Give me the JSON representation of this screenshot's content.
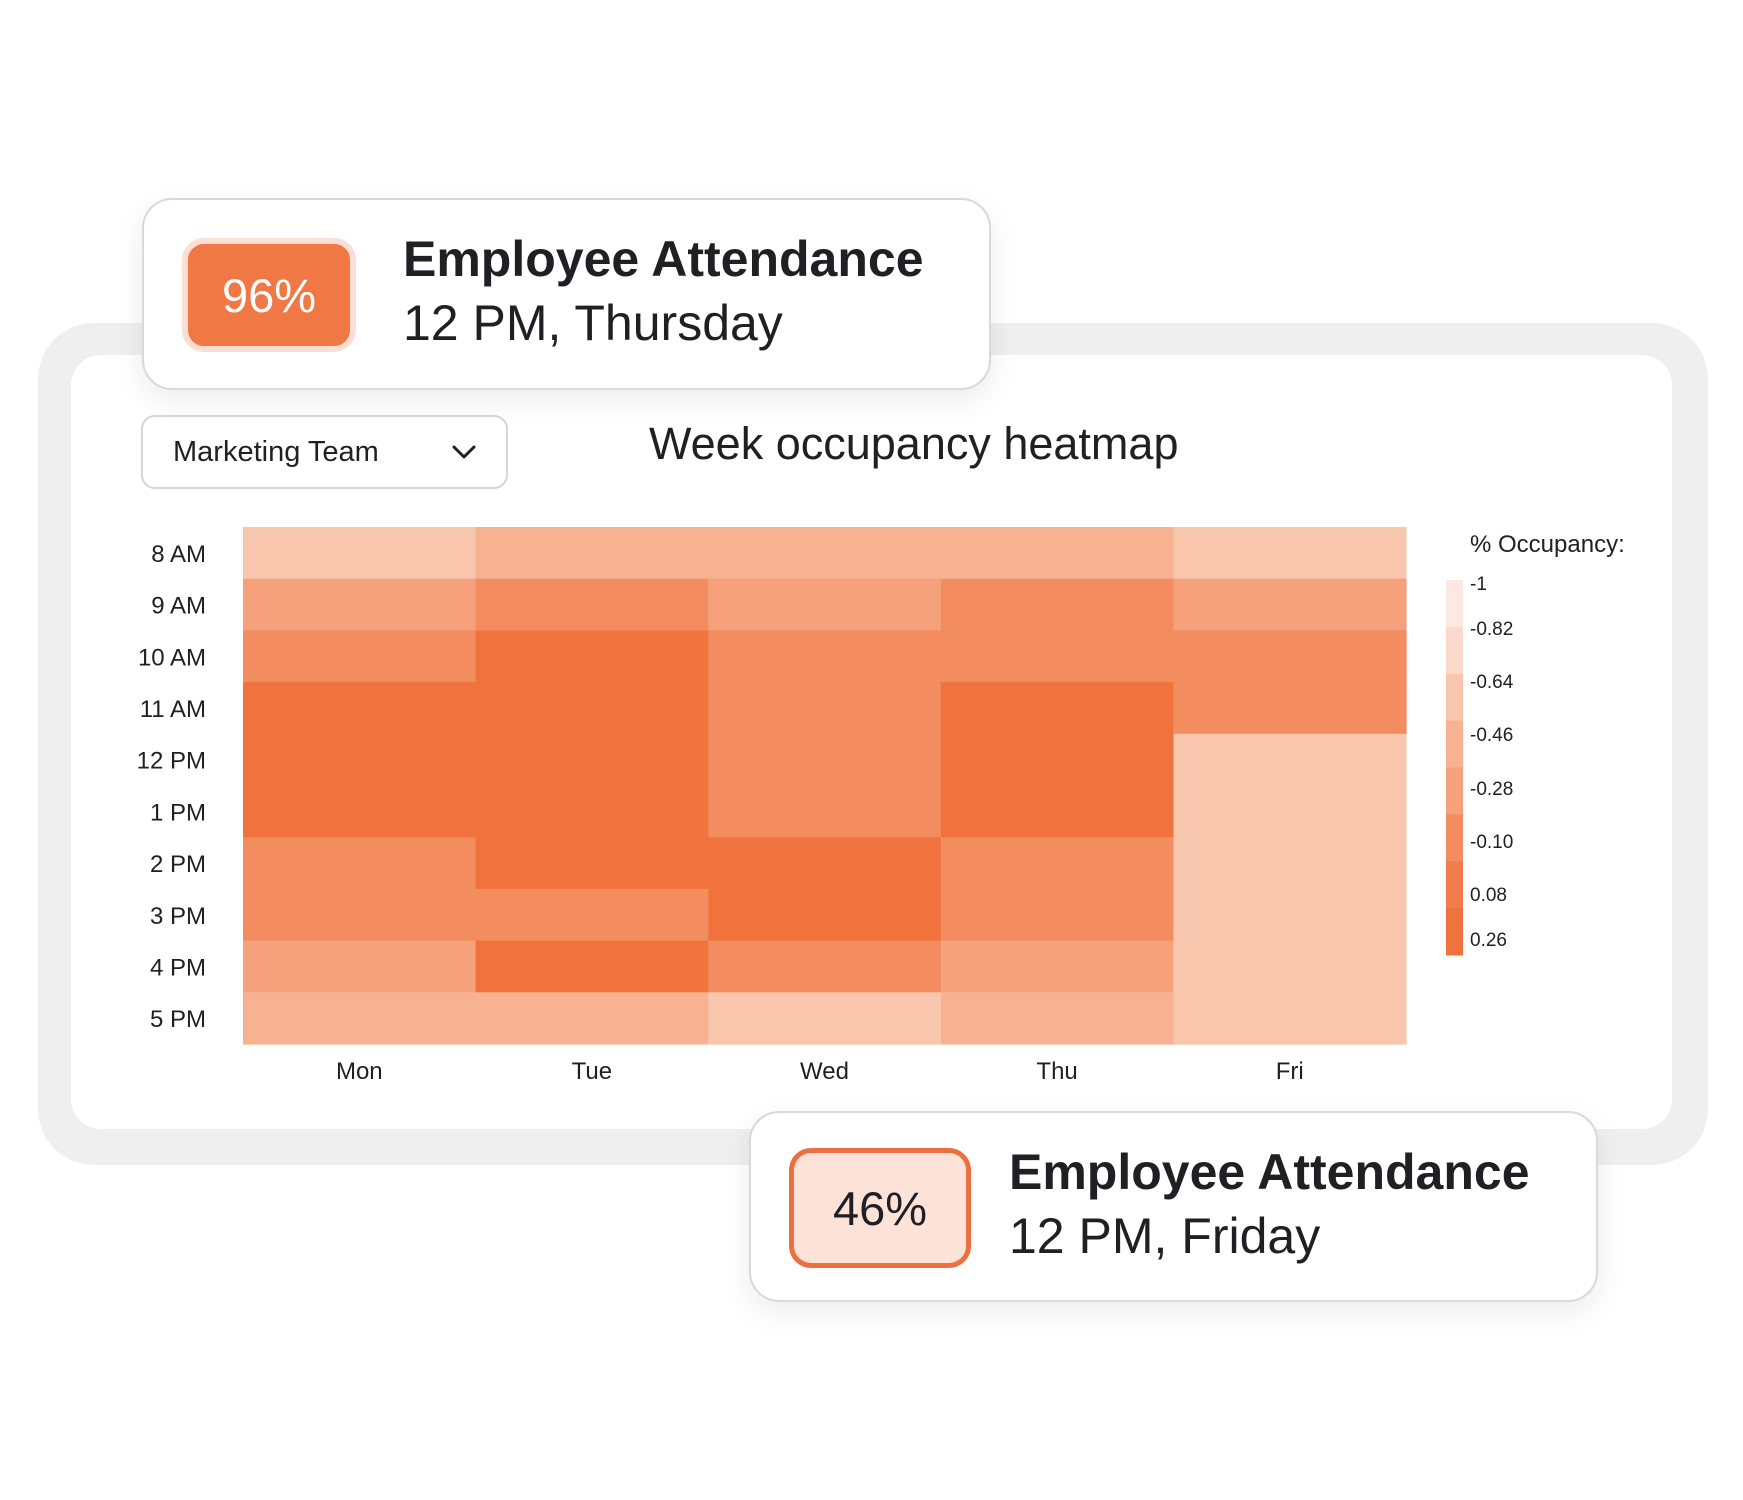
{
  "team_selector": {
    "value": "Marketing Team",
    "icon": "chevron-down-icon"
  },
  "chart_data": {
    "type": "heatmap",
    "title": "Week occupancy heatmap",
    "x_categories": [
      "Mon",
      "Tue",
      "Wed",
      "Thu",
      "Fri"
    ],
    "y_categories": [
      "8 AM",
      "9 AM",
      "10 AM",
      "11 AM",
      "12 PM",
      "1 PM",
      "2 PM",
      "3 PM",
      "4 PM",
      "5 PM"
    ],
    "values": [
      [
        -0.64,
        -0.46,
        -0.46,
        -0.46,
        -0.64
      ],
      [
        -0.28,
        -0.1,
        -0.28,
        -0.1,
        -0.28
      ],
      [
        -0.1,
        0.26,
        -0.1,
        -0.1,
        -0.1
      ],
      [
        0.26,
        0.26,
        -0.1,
        0.26,
        -0.1
      ],
      [
        0.26,
        0.26,
        -0.1,
        0.26,
        -0.64
      ],
      [
        0.26,
        0.26,
        -0.1,
        0.26,
        -0.64
      ],
      [
        -0.1,
        0.26,
        0.26,
        -0.1,
        -0.64
      ],
      [
        -0.1,
        -0.1,
        0.26,
        -0.1,
        -0.64
      ],
      [
        -0.28,
        0.26,
        -0.1,
        -0.28,
        -0.64
      ],
      [
        -0.46,
        -0.46,
        -0.64,
        -0.46,
        -0.64
      ]
    ],
    "legend": {
      "title": "% Occupancy:",
      "ticks": [
        "-1",
        "-0.82",
        "-0.64",
        "-0.46",
        "-0.28",
        "-0.10",
        "0.08",
        "0.26"
      ],
      "colors": [
        "#fde9e1",
        "#fbd9cb",
        "#f8c5ad",
        "#f6b291",
        "#f5a27c",
        "#f38c5f",
        "#f27d4c",
        "#f0733d"
      ]
    },
    "grid": false
  },
  "cards": [
    {
      "value": "96%",
      "title": "Employee Attendance",
      "subtitle": "12 PM, Thursday",
      "badge_style": "strong"
    },
    {
      "value": "46%",
      "title": "Employee Attendance",
      "subtitle": "12 PM, Friday",
      "badge_style": "light"
    }
  ],
  "colors": {
    "accent": "#f07844",
    "accent_light": "#fde2d8",
    "frame": "#efefef"
  }
}
